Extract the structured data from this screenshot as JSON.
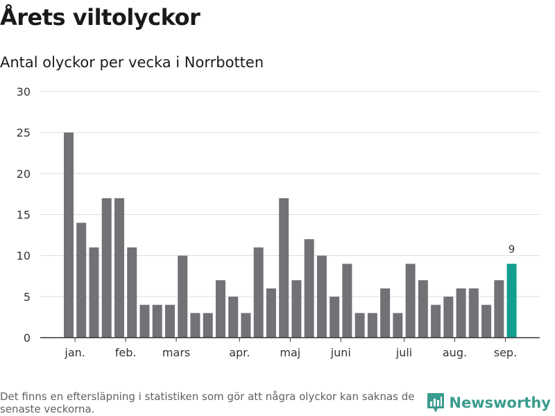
{
  "title": "Årets viltolyckor",
  "subtitle": "Antal olyckor per vecka i Norrbotten",
  "footnote": "Det finns en eftersläpning i statistiken som gör att några olyckor kan saknas de senaste veckorna.",
  "brand": {
    "name": "Newsworthy",
    "icon": "newsworthy-logo-icon",
    "color": "#3a9c8e"
  },
  "colors": {
    "bar": "#727176",
    "highlight": "#139f8f",
    "grid": "#dddddd",
    "axis": "#333333"
  },
  "chart_data": {
    "type": "bar",
    "values": [
      25,
      14,
      11,
      17,
      17,
      11,
      4,
      4,
      4,
      10,
      3,
      3,
      7,
      5,
      3,
      11,
      6,
      17,
      7,
      12,
      10,
      5,
      9,
      3,
      3,
      6,
      3,
      9,
      7,
      4,
      5,
      6,
      6,
      4,
      7,
      9
    ],
    "highlight_index": 35,
    "data_labels": [
      {
        "index": 35,
        "text": "9"
      }
    ],
    "x_tick_labels": [
      {
        "label": "jan.",
        "index": 0.5
      },
      {
        "label": "feb.",
        "index": 4.5
      },
      {
        "label": "mars",
        "index": 8.5
      },
      {
        "label": "apr.",
        "index": 13.5
      },
      {
        "label": "maj",
        "index": 17.5
      },
      {
        "label": "juni",
        "index": 21.5
      },
      {
        "label": "juli",
        "index": 26.5
      },
      {
        "label": "aug.",
        "index": 30.5
      },
      {
        "label": "sep.",
        "index": 34.5
      }
    ],
    "y_ticks": [
      0,
      5,
      10,
      15,
      20,
      25,
      30
    ],
    "ylim": [
      0,
      30
    ],
    "grid": true,
    "legend": "none"
  }
}
